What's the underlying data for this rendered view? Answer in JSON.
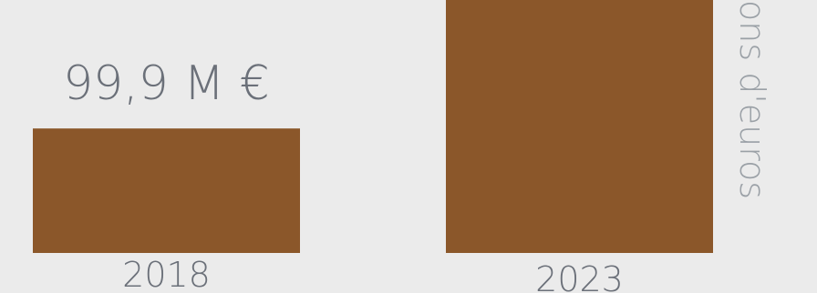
{
  "chart_data": {
    "type": "bar",
    "categories": [
      "2018",
      "2023"
    ],
    "values": [
      99.9,
      203
    ],
    "data_labels": [
      "99,9 M €",
      ""
    ],
    "ylabel": "ons d'euros",
    "ylim": [
      0,
      203
    ],
    "grid": false,
    "colors": {
      "bar": "#8b572a",
      "background": "#ebebeb",
      "text": "#6b7079",
      "axis_label": "#9aa0a6"
    }
  }
}
